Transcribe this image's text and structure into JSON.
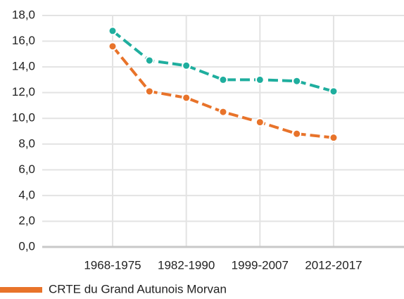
{
  "chart_data": {
    "type": "line",
    "categories": [
      "1968-1975",
      null,
      "1982-1990",
      null,
      "1999-2007",
      null,
      "2012-2017"
    ],
    "series": [
      {
        "color": "#1fae9e",
        "values": [
          16.8,
          14.5,
          14.1,
          13.0,
          13.0,
          12.9,
          12.1
        ]
      },
      {
        "name": "CRTE du Grand Autunois Morvan",
        "color": "#e8732a",
        "values": [
          15.6,
          12.1,
          11.6,
          10.5,
          9.7,
          8.8,
          8.5
        ]
      }
    ],
    "ylim": [
      0,
      18
    ],
    "yticks": [
      {
        "value": 0,
        "label": "0,0"
      },
      {
        "value": 2,
        "label": "2,0"
      },
      {
        "value": 4,
        "label": "4,0"
      },
      {
        "value": 6,
        "label": "6,0"
      },
      {
        "value": 8,
        "label": "8,0"
      },
      {
        "value": 10,
        "label": "10,0"
      },
      {
        "value": 12,
        "label": "12,0"
      },
      {
        "value": 14,
        "label": "14,0"
      },
      {
        "value": 16,
        "label": "16,0"
      },
      {
        "value": 18,
        "label": "18,0"
      }
    ],
    "grid": true
  }
}
